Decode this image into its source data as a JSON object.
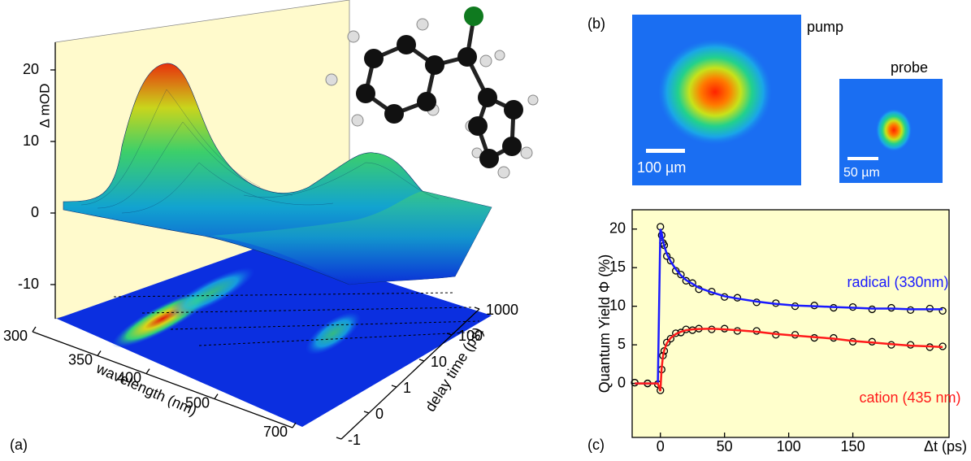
{
  "panel_labels": [
    "(a)",
    "(b)",
    "(c)"
  ],
  "panel_b": {
    "images": [
      {
        "label": "pump",
        "scale_bar": "100 µm"
      },
      {
        "label": "probe",
        "scale_bar": "50 µm"
      }
    ]
  },
  "chart_data": [
    {
      "type": "surface3d",
      "zlabel": "Δ mOD",
      "xlabel": "wavelength (nm)",
      "ylabel": "delay time (ps)",
      "zticks": [
        20,
        10,
        0,
        -10
      ],
      "xticks": [
        300,
        350,
        400,
        500,
        700
      ],
      "yticks": [
        -1,
        0,
        1,
        10,
        100,
        1000
      ]
    },
    {
      "type": "line",
      "ylabel": "Quantum Yield Φ (%)",
      "xlabel": "Δt (ps)",
      "x": [
        -20,
        -10,
        -2,
        0,
        1,
        2,
        3,
        5,
        8,
        12,
        16,
        20,
        25,
        30,
        40,
        50,
        60,
        75,
        90,
        105,
        120,
        135,
        150,
        165,
        180,
        195,
        210,
        220
      ],
      "series": [
        {
          "color": "#000000",
          "marker": "open-circle",
          "values": [
            0.1,
            0,
            -0.1,
            20.3,
            19.2,
            18.2,
            17.9,
            16.5,
            15.9,
            14.6,
            14.1,
            13.3,
            13.0,
            12.2,
            11.9,
            11.2,
            11.1,
            10.5,
            10.4,
            10.0,
            10.1,
            9.8,
            9.9,
            9.6,
            9.8,
            9.5,
            9.7,
            9.4
          ]
        },
        {
          "color": "#000000",
          "marker": "open-circle",
          "values": [
            0.1,
            0,
            -0.1,
            -0.9,
            1.8,
            3.6,
            4.2,
            5.3,
            5.8,
            6.5,
            6.6,
            7.0,
            6.9,
            7.1,
            7.0,
            7.1,
            6.8,
            6.8,
            6.3,
            6.3,
            5.9,
            5.9,
            5.4,
            5.4,
            5.0,
            5.0,
            4.7,
            4.8
          ]
        },
        {
          "name": "radical (330nm)",
          "color": "#1a1aff",
          "values": [
            0,
            0,
            0,
            20,
            19.5,
            18.5,
            17.8,
            16.8,
            15.8,
            14.8,
            14.0,
            13.4,
            12.9,
            12.4,
            11.8,
            11.3,
            11.0,
            10.6,
            10.3,
            10.1,
            10.0,
            9.9,
            9.8,
            9.7,
            9.7,
            9.6,
            9.6,
            9.6
          ]
        },
        {
          "name": "cation (435 nm)",
          "color": "#ff1a1a",
          "values": [
            0,
            0,
            0,
            -1,
            2,
            3.5,
            4.3,
            5.2,
            5.9,
            6.4,
            6.7,
            6.9,
            7.0,
            7.05,
            7.1,
            7.0,
            6.9,
            6.7,
            6.4,
            6.2,
            6.0,
            5.8,
            5.5,
            5.3,
            5.1,
            4.9,
            4.8,
            4.7
          ]
        }
      ],
      "xlim": [
        -22,
        225
      ],
      "ylim": [
        -7,
        22.5
      ],
      "xticks": [
        0,
        50,
        100,
        150
      ],
      "yticks": [
        0,
        5,
        10,
        15,
        20
      ],
      "background": "#ffffcc"
    }
  ]
}
